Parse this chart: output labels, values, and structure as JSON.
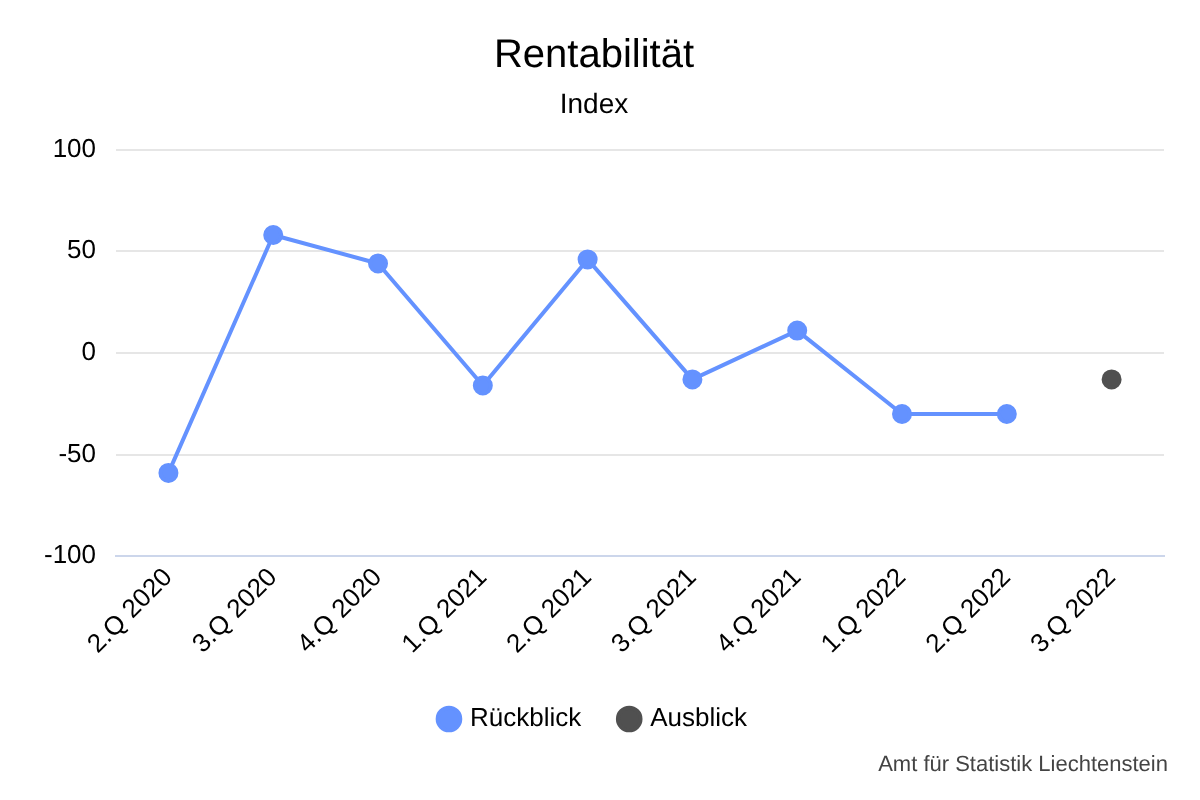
{
  "chart_data": {
    "type": "line",
    "title": "Rentabilität",
    "subtitle": "Index",
    "categories": [
      "2.Q 2020",
      "3.Q 2020",
      "4.Q 2020",
      "1.Q 2021",
      "2.Q 2021",
      "3.Q 2021",
      "4.Q 2021",
      "1.Q 2022",
      "2.Q 2022",
      "3.Q 2022"
    ],
    "series": [
      {
        "name": "Rückblick",
        "color": "#6492ff",
        "values": [
          -59,
          58,
          44,
          -16,
          46,
          -13,
          11,
          -30,
          -30,
          null
        ]
      },
      {
        "name": "Ausblick",
        "color": "#505050",
        "values": [
          null,
          null,
          null,
          null,
          null,
          null,
          null,
          null,
          null,
          -13
        ]
      }
    ],
    "ylim": [
      -100,
      100
    ],
    "yticks": [
      -100,
      -50,
      0,
      50,
      100
    ],
    "grid": "y",
    "legend": "bottom",
    "marker": "circle",
    "line_style": "solid",
    "annotations": [
      "Amt für Statistik Liechtenstein"
    ]
  }
}
